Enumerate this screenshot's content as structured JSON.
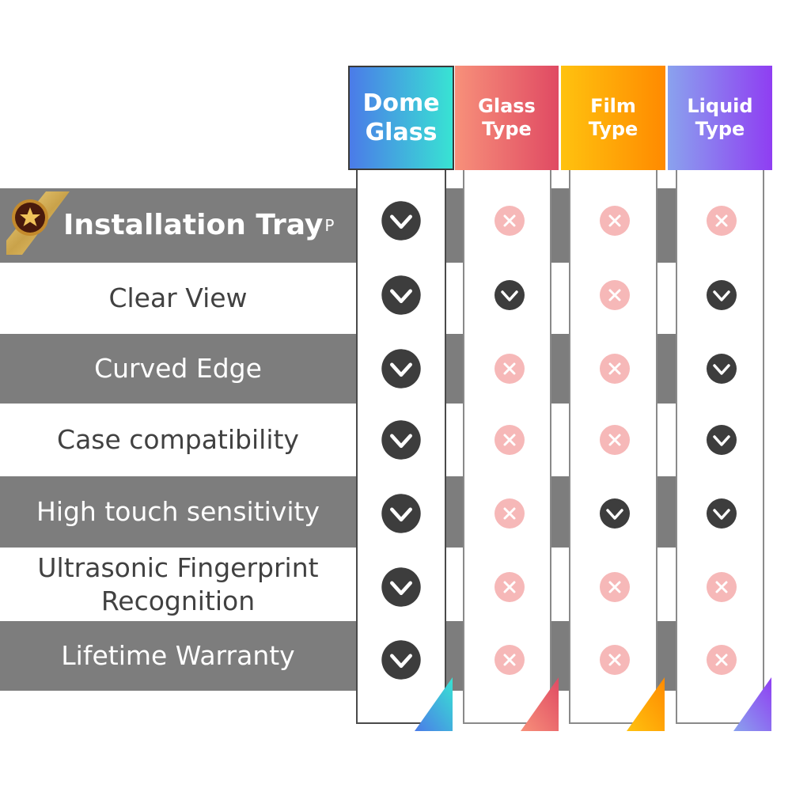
{
  "columns": [
    {
      "key": "dome",
      "line1": "Dome",
      "line2": "Glass"
    },
    {
      "key": "glass",
      "line1": "Glass",
      "line2": "Type"
    },
    {
      "key": "film",
      "line1": "Film",
      "line2": "Type"
    },
    {
      "key": "liquid",
      "line1": "Liquid",
      "line2": "Type"
    }
  ],
  "rows": [
    {
      "label": "Installation Tray",
      "sup": "P",
      "values": [
        "yes",
        "no",
        "no",
        "no"
      ]
    },
    {
      "label": "Clear View",
      "values": [
        "yes",
        "yes",
        "no",
        "yes"
      ]
    },
    {
      "label": "Curved Edge",
      "values": [
        "yes",
        "no",
        "no",
        "yes"
      ]
    },
    {
      "label": "Case compatibility",
      "values": [
        "yes",
        "no",
        "no",
        "yes"
      ]
    },
    {
      "label": "High touch sensitivity",
      "values": [
        "yes",
        "no",
        "yes",
        "yes"
      ]
    },
    {
      "label": "Ultrasonic Fingerprint",
      "label2": "Recognition",
      "values": [
        "yes",
        "no",
        "no",
        "no"
      ]
    },
    {
      "label": "Lifetime Warranty",
      "values": [
        "yes",
        "no",
        "no",
        "no"
      ]
    }
  ],
  "colors": {
    "band": "#7d7d7d",
    "check": "#3d3d3d",
    "cross": "#f6b8b8",
    "dome_gradient": [
      "#4b7be8",
      "#38e3d3"
    ],
    "glass_gradient": [
      "#f7907a",
      "#e04a63"
    ],
    "film_gradient": [
      "#ffc20f",
      "#ff8a00"
    ],
    "liquid_gradient": [
      "#8aa2ee",
      "#8f3ef2"
    ]
  },
  "icons": {
    "yes": "check-circle-icon",
    "no": "cross-circle-icon",
    "badge": "star-ribbon-badge-icon"
  }
}
